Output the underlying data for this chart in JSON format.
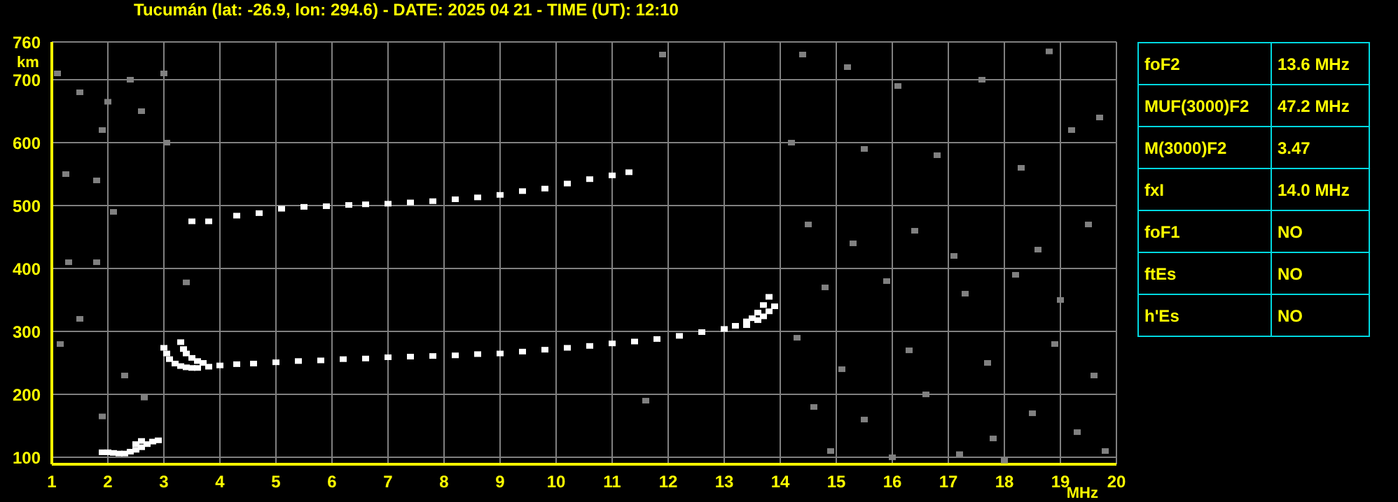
{
  "chart_data": {
    "type": "scatter",
    "title": "Tucumán (lat: -26.9, lon: 294.6) - DATE: 2025 04 21 - TIME (UT): 12:10",
    "xlabel": "MHz",
    "ylabel": "km",
    "xlim": [
      1,
      20
    ],
    "xticks": [
      1,
      2,
      3,
      4,
      5,
      6,
      7,
      8,
      9,
      10,
      11,
      12,
      13,
      14,
      15,
      16,
      17,
      18,
      19,
      20
    ],
    "ylim": [
      89,
      760
    ],
    "yticks": [
      100,
      200,
      300,
      400,
      500,
      600,
      700,
      760
    ],
    "grid": true,
    "marker": "square",
    "series": [
      {
        "color": "#808080",
        "x": [
          1.1,
          1.5,
          1.9,
          2.0,
          1.25,
          1.8,
          2.1,
          1.3,
          1.8,
          1.5,
          1.15,
          2.3,
          1.9,
          2.65,
          3.05,
          3.4,
          2.6,
          3.0,
          2.4,
          14.4,
          15.2,
          16.1,
          17.6,
          18.8,
          19.7,
          14.2,
          15.5,
          16.8,
          18.3,
          19.2,
          14.5,
          15.3,
          16.4,
          17.1,
          18.6,
          19.5,
          14.8,
          15.9,
          17.3,
          18.2,
          19.0,
          14.3,
          15.1,
          16.3,
          17.7,
          18.9,
          19.6,
          14.6,
          15.5,
          16.6,
          17.8,
          18.5,
          19.3,
          14.9,
          16.0,
          17.2,
          18.0,
          19.8,
          11.9,
          11.6
        ],
        "values": [
          710,
          680,
          620,
          665,
          550,
          540,
          490,
          410,
          410,
          320,
          280,
          230,
          165,
          195,
          600,
          378,
          650,
          710,
          700,
          740,
          720,
          690,
          700,
          745,
          640,
          600,
          590,
          580,
          560,
          620,
          470,
          440,
          460,
          420,
          430,
          470,
          370,
          380,
          360,
          390,
          350,
          290,
          240,
          270,
          250,
          280,
          230,
          180,
          160,
          200,
          130,
          170,
          140,
          110,
          100,
          105,
          95,
          110,
          740,
          190
        ]
      },
      {
        "color": "#ffffff",
        "x": [
          3.0,
          3.05,
          3.1,
          3.2,
          3.3,
          3.4,
          3.5,
          3.6,
          3.8,
          4.0,
          4.3,
          4.6,
          5.0,
          5.4,
          5.8,
          6.2,
          6.6,
          7.0,
          7.4,
          7.8,
          8.2,
          8.6,
          9.0,
          9.4,
          9.8,
          10.2,
          10.6,
          11.0,
          11.4,
          11.8,
          12.2,
          12.6,
          13.0,
          13.2,
          13.4,
          13.5,
          13.6,
          13.7,
          13.8
        ],
        "values": [
          274,
          265,
          256,
          249,
          245,
          243,
          242,
          242,
          244,
          246,
          248,
          249,
          251,
          253,
          254,
          256,
          257,
          259,
          260,
          261,
          262,
          264,
          265,
          268,
          271,
          274,
          277,
          281,
          284,
          288,
          293,
          299,
          304,
          309,
          316,
          321,
          330,
          342,
          355
        ]
      },
      {
        "color": "#ffffff",
        "x": [
          3.3,
          3.35,
          3.4,
          3.5,
          3.6,
          3.7,
          13.4,
          13.6,
          13.7,
          13.8,
          13.9
        ],
        "values": [
          283,
          272,
          265,
          258,
          253,
          250,
          310,
          318,
          324,
          332,
          340
        ]
      },
      {
        "color": "#ffffff",
        "x": [
          3.5,
          3.8,
          4.3,
          4.7,
          5.1,
          5.5,
          5.9,
          6.3,
          6.6,
          7.0,
          7.4,
          7.8,
          8.2,
          8.6,
          9.0,
          9.4,
          9.8,
          10.2,
          10.6,
          11.0,
          11.3
        ],
        "values": [
          475,
          475,
          484,
          488,
          495,
          498,
          499,
          501,
          502,
          503,
          505,
          507,
          510,
          513,
          517,
          523,
          527,
          535,
          542,
          548,
          553
        ]
      },
      {
        "color": "#ffffff",
        "x": [
          1.9,
          2.0,
          2.1,
          2.2,
          2.3,
          2.4,
          2.5,
          2.6,
          2.7,
          2.8,
          2.9,
          2.5,
          2.6
        ],
        "values": [
          108,
          108,
          107,
          106,
          106,
          109,
          112,
          116,
          121,
          125,
          127,
          121,
          126
        ]
      }
    ],
    "annotations": [
      "foF2",
      "13.6 MHz",
      "MUF(3000)F2",
      "47.2 MHz",
      "M(3000)F2",
      "3.47",
      "fxI",
      "14.0 MHz",
      "foF1",
      "NO",
      "ftEs",
      "NO",
      "h'Es",
      "NO"
    ]
  }
}
